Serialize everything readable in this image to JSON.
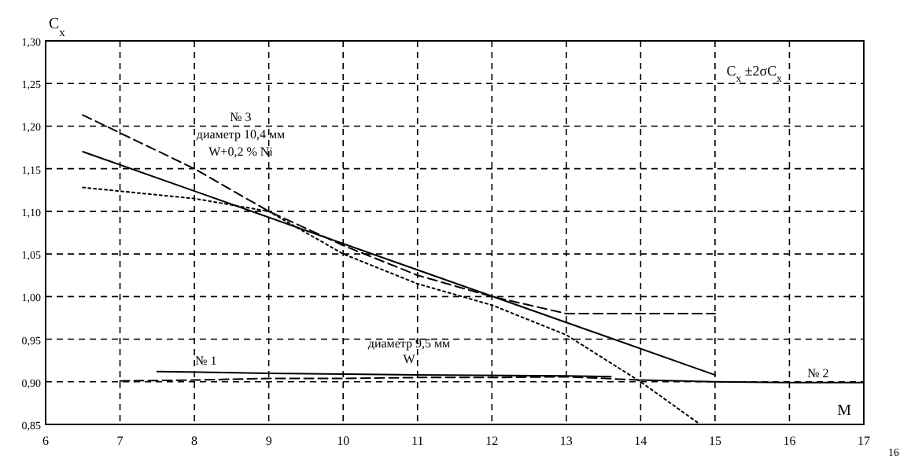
{
  "chart_data": {
    "type": "line",
    "ylabel": "C$_{x}$",
    "xlabel": "M",
    "xlim": [
      6,
      17
    ],
    "xticks": [
      6,
      7,
      8,
      9,
      10,
      11,
      12,
      13,
      14,
      15,
      16,
      17
    ],
    "ylim": [
      0.85,
      1.3
    ],
    "yticks": [
      {
        "value": 0.85,
        "label": "0,85"
      },
      {
        "value": 0.9,
        "label": "0,90"
      },
      {
        "value": 0.95,
        "label": "0,95"
      },
      {
        "value": 1.0,
        "label": "1,00"
      },
      {
        "value": 1.05,
        "label": "1,05"
      },
      {
        "value": 1.1,
        "label": "1,10"
      },
      {
        "value": 1.15,
        "label": "1,15"
      },
      {
        "value": 1.2,
        "label": "1,20"
      },
      {
        "value": 1.25,
        "label": "1,25"
      },
      {
        "value": 1.3,
        "label": "1,30"
      }
    ],
    "grid": true,
    "series": [
      {
        "color": "#000000",
        "line_style": "solid",
        "x": [
          6.5,
          15
        ],
        "values": [
          1.17,
          0.908
        ]
      },
      {
        "color": "#000000",
        "line_style": "dashed",
        "x": [
          6.5,
          8,
          9,
          10,
          11,
          12,
          13,
          15
        ],
        "values": [
          1.213,
          1.15,
          1.1,
          1.06,
          1.025,
          1.0,
          0.98,
          0.98
        ]
      },
      {
        "color": "#000000",
        "line_style": "dotted",
        "x": [
          6.5,
          8,
          9,
          10,
          11,
          12,
          13,
          14,
          14.8
        ],
        "values": [
          1.128,
          1.115,
          1.1,
          1.05,
          1.015,
          0.99,
          0.955,
          0.9,
          0.85
        ]
      },
      {
        "color": "#000000",
        "line_style": "solid",
        "x": [
          7.5,
          9,
          11,
          13,
          13.6
        ],
        "values": [
          0.912,
          0.91,
          0.908,
          0.907,
          0.906
        ]
      },
      {
        "color": "#000000",
        "line_style": "dashed",
        "x": [
          7,
          8,
          9,
          10,
          11,
          12,
          13,
          14
        ],
        "values": [
          0.901,
          0.902,
          0.904,
          0.904,
          0.905,
          0.905,
          0.906,
          0.902
        ]
      },
      {
        "color": "#000000",
        "line_style": "solid",
        "x": [
          14,
          15,
          16,
          17
        ],
        "values": [
          0.902,
          0.9,
          0.899,
          0.899
        ]
      }
    ],
    "annotations": [
      "№ 3",
      "диаметр 10,4 мм",
      "W+0,2 % Ni",
      "№ 1",
      "диаметр 9,5 мм",
      "W",
      "№ 2",
      "C$_{x}$ ±2σC$_{x}$",
      "16"
    ]
  }
}
